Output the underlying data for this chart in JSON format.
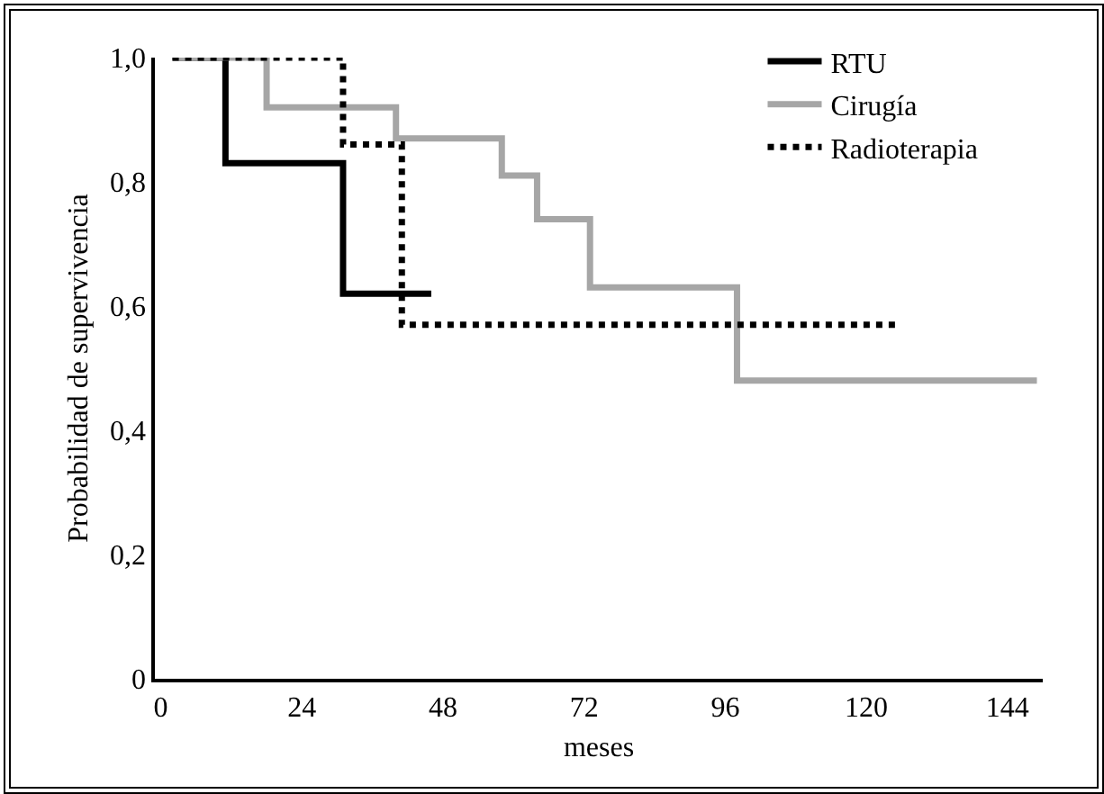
{
  "chart_data": {
    "type": "step",
    "xlabel": "meses",
    "ylabel": "Probabilidad de supervivencia",
    "xlim": [
      -1,
      150
    ],
    "xticks": [
      0,
      24,
      48,
      72,
      96,
      120,
      144
    ],
    "ylim": [
      0,
      1
    ],
    "yticks": [
      0,
      {
        "value": 0.2,
        "label": "0,2"
      },
      {
        "value": 0.4,
        "label": "0,4"
      },
      {
        "value": 0.6,
        "label": "0,6"
      },
      {
        "value": 0.8,
        "label": "0,8"
      },
      {
        "value": 1,
        "label": "1,0"
      }
    ],
    "grid": false,
    "legend": "top right",
    "marker": "none",
    "series": [
      {
        "name": "RTU",
        "color": "#000000",
        "line_style": "solid",
        "x": [
          2,
          11,
          31,
          46
        ],
        "values": [
          1,
          0.83,
          0.62,
          0.62
        ]
      },
      {
        "name": "Cirugía",
        "color": "#a6a6a6",
        "line_style": "solid",
        "x": [
          2,
          18,
          40,
          58,
          64,
          73,
          98,
          149
        ],
        "values": [
          1,
          0.92,
          0.87,
          0.81,
          0.74,
          0.63,
          0.48,
          0.48
        ]
      },
      {
        "name": "Radioterapia",
        "color": "#000000",
        "line_style": "dotted",
        "x": [
          2,
          31,
          41,
          125
        ],
        "values": [
          1,
          0.86,
          0.57,
          0.57
        ]
      }
    ]
  }
}
